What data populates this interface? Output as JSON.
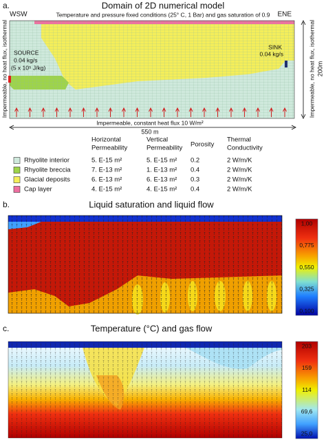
{
  "panel_a": {
    "label": "a.",
    "title": "Domain of 2D numerical model",
    "top_note": "Temperature and pressure fixed conditions (25° C, 1 Bar) and gas saturation of 0.9",
    "west": "WSW",
    "east": "ENE",
    "left_side": "Impermeable, no heat flux, isothermal",
    "right_side": "Impermeable, no heat flux, isothermal",
    "source": [
      "SOURCE",
      "0.04 kg/s",
      "(5 x 10⁵ J/kg)"
    ],
    "sink": [
      "SINK",
      "0.04 kg/s"
    ],
    "bottom": "Impermeable, constant heat flux 10 W/m²",
    "width": "550 m",
    "height": "200m",
    "table": {
      "headers": [
        [
          "Horizontal",
          "Permeability"
        ],
        [
          "Vertical",
          "Permeability"
        ],
        [
          "Porosity"
        ],
        [
          "Thermal",
          "Conductivity"
        ]
      ],
      "rows": [
        [
          "Rhyolite interior",
          "5. E-15 m²",
          "5. E-15 m²",
          "0.2",
          "2 W/m/K"
        ],
        [
          "Rhyolite breccia",
          "7. E-13 m²",
          "1. E-13 m²",
          "0.4",
          "2 W/m/K"
        ],
        [
          "Glacial deposits",
          "6. E-13 m²",
          "6. E-13 m²",
          "0.3",
          "2 W/m/K"
        ],
        [
          "Cap layer",
          "4. E-15 m²",
          "4. E-15 m²",
          "0.4",
          "2 W/m/K"
        ]
      ]
    }
  },
  "panel_b": {
    "label": "b.",
    "title": "Liquid saturation and liquid flow",
    "colorbar_ticks": [
      "1,00",
      "0,775",
      "0,550",
      "0,325",
      "0,100"
    ]
  },
  "panel_c": {
    "label": "c.",
    "title": "Temperature (°C) and gas flow",
    "colorbar_ticks": [
      "203",
      "159",
      "114",
      "69,6",
      "25,0"
    ]
  }
}
